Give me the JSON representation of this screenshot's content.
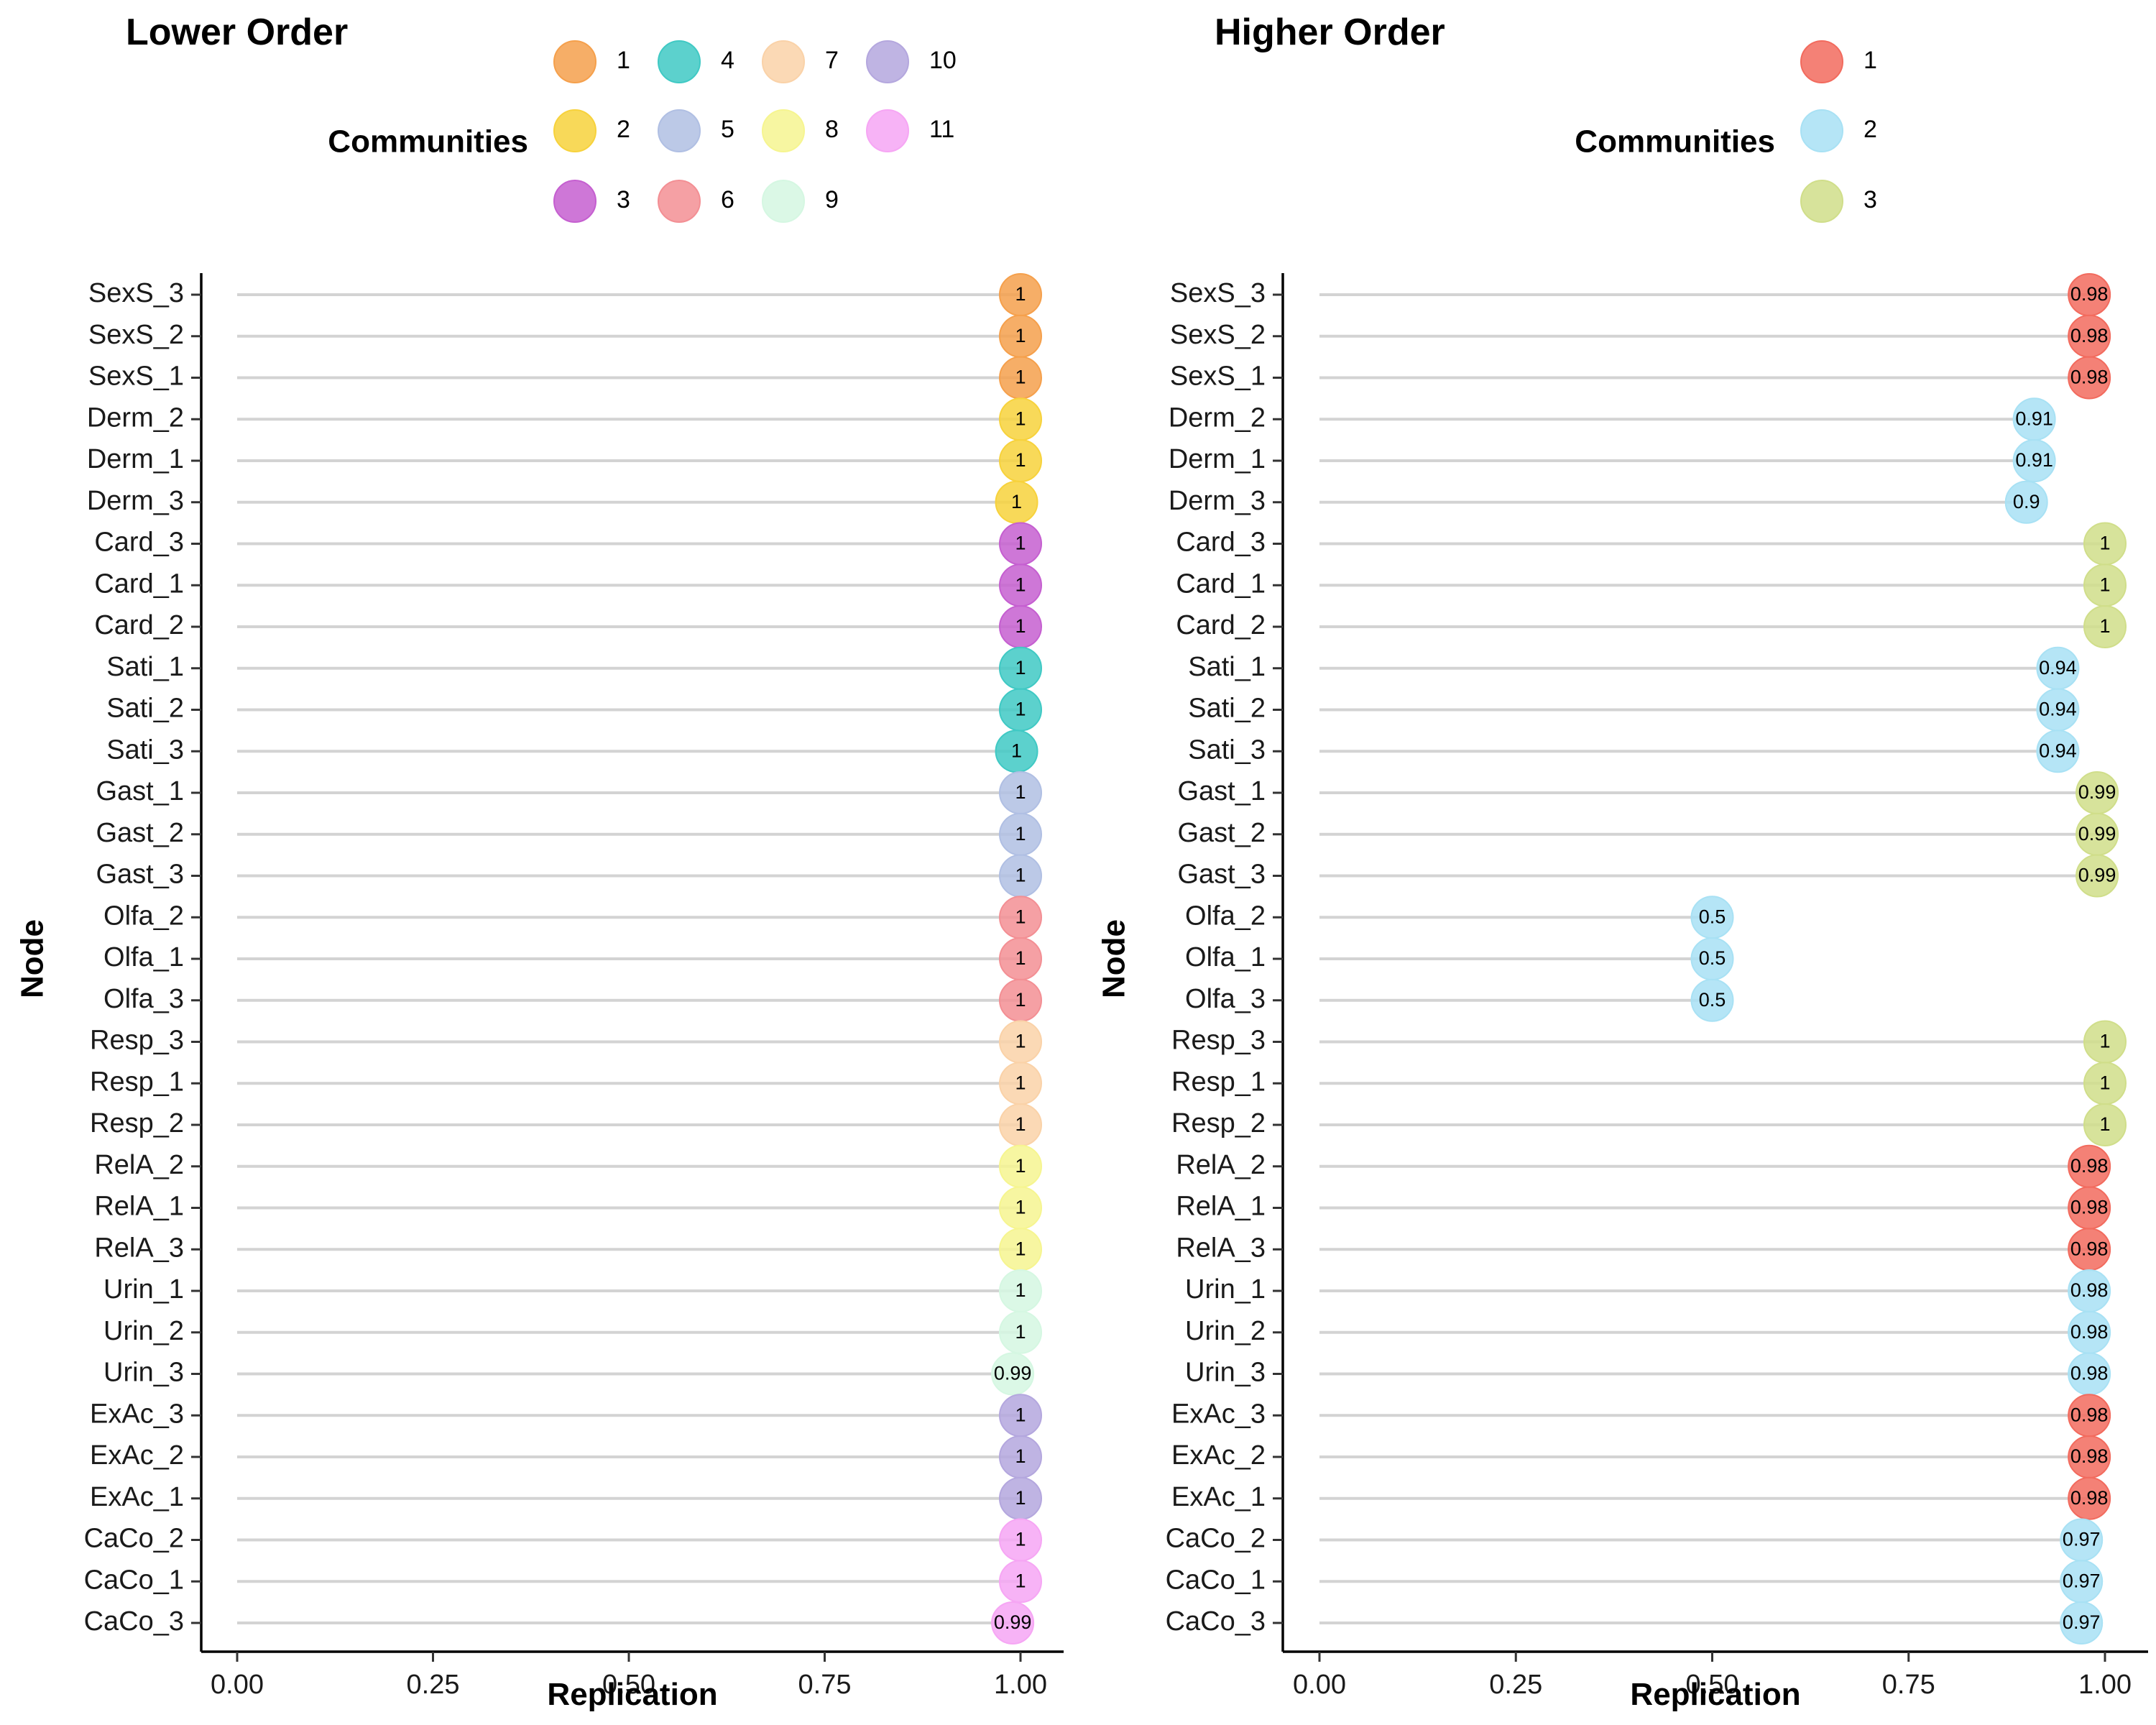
{
  "chart_data": [
    {
      "type": "lollipop",
      "title": "Lower Order",
      "xlabel": "Replication",
      "ylabel": "Node",
      "xlim": [
        0,
        1
      ],
      "xticks": [
        "0.00",
        "0.25",
        "0.50",
        "0.75",
        "1.00"
      ],
      "legend": {
        "title": "Communities",
        "placement": "top",
        "entries": [
          {
            "label": "1",
            "color": "#F5A04C"
          },
          {
            "label": "2",
            "color": "#F7D23C"
          },
          {
            "label": "3",
            "color": "#C55FD0"
          },
          {
            "label": "4",
            "color": "#40C9C4"
          },
          {
            "label": "5",
            "color": "#B0BFE3"
          },
          {
            "label": "6",
            "color": "#F38F94"
          },
          {
            "label": "7",
            "color": "#FAD2A8"
          },
          {
            "label": "8",
            "color": "#F6F590"
          },
          {
            "label": "9",
            "color": "#D5F7E2"
          },
          {
            "label": "10",
            "color": "#B4A7DE"
          },
          {
            "label": "11",
            "color": "#F6A6F4"
          }
        ]
      },
      "points": [
        {
          "node": "SexS_3",
          "value": 1,
          "label": "1",
          "community": "1"
        },
        {
          "node": "SexS_2",
          "value": 1,
          "label": "1",
          "community": "1"
        },
        {
          "node": "SexS_1",
          "value": 1,
          "label": "1",
          "community": "1"
        },
        {
          "node": "Derm_2",
          "value": 1,
          "label": "1",
          "community": "2"
        },
        {
          "node": "Derm_1",
          "value": 1,
          "label": "1",
          "community": "2"
        },
        {
          "node": "Derm_3",
          "value": 0.995,
          "label": "1",
          "community": "2"
        },
        {
          "node": "Card_3",
          "value": 1,
          "label": "1",
          "community": "3"
        },
        {
          "node": "Card_1",
          "value": 1,
          "label": "1",
          "community": "3"
        },
        {
          "node": "Card_2",
          "value": 1,
          "label": "1",
          "community": "3"
        },
        {
          "node": "Sati_1",
          "value": 1,
          "label": "1",
          "community": "4"
        },
        {
          "node": "Sati_2",
          "value": 1,
          "label": "1",
          "community": "4"
        },
        {
          "node": "Sati_3",
          "value": 0.995,
          "label": "1",
          "community": "4"
        },
        {
          "node": "Gast_1",
          "value": 1,
          "label": "1",
          "community": "5"
        },
        {
          "node": "Gast_2",
          "value": 1,
          "label": "1",
          "community": "5"
        },
        {
          "node": "Gast_3",
          "value": 1,
          "label": "1",
          "community": "5"
        },
        {
          "node": "Olfa_2",
          "value": 1,
          "label": "1",
          "community": "6"
        },
        {
          "node": "Olfa_1",
          "value": 1,
          "label": "1",
          "community": "6"
        },
        {
          "node": "Olfa_3",
          "value": 1,
          "label": "1",
          "community": "6"
        },
        {
          "node": "Resp_3",
          "value": 1,
          "label": "1",
          "community": "7"
        },
        {
          "node": "Resp_1",
          "value": 1,
          "label": "1",
          "community": "7"
        },
        {
          "node": "Resp_2",
          "value": 1,
          "label": "1",
          "community": "7"
        },
        {
          "node": "RelA_2",
          "value": 1,
          "label": "1",
          "community": "8"
        },
        {
          "node": "RelA_1",
          "value": 1,
          "label": "1",
          "community": "8"
        },
        {
          "node": "RelA_3",
          "value": 1,
          "label": "1",
          "community": "8"
        },
        {
          "node": "Urin_1",
          "value": 1,
          "label": "1",
          "community": "9"
        },
        {
          "node": "Urin_2",
          "value": 1,
          "label": "1",
          "community": "9"
        },
        {
          "node": "Urin_3",
          "value": 0.99,
          "label": "0.99",
          "community": "9"
        },
        {
          "node": "ExAc_3",
          "value": 1,
          "label": "1",
          "community": "10"
        },
        {
          "node": "ExAc_2",
          "value": 1,
          "label": "1",
          "community": "10"
        },
        {
          "node": "ExAc_1",
          "value": 1,
          "label": "1",
          "community": "10"
        },
        {
          "node": "CaCo_2",
          "value": 1,
          "label": "1",
          "community": "11"
        },
        {
          "node": "CaCo_1",
          "value": 1,
          "label": "1",
          "community": "11"
        },
        {
          "node": "CaCo_3",
          "value": 0.99,
          "label": "0.99",
          "community": "11"
        }
      ]
    },
    {
      "type": "lollipop",
      "title": "Higher Order",
      "xlabel": "Replication",
      "ylabel": "Node",
      "xlim": [
        0,
        1
      ],
      "xticks": [
        "0.00",
        "0.25",
        "0.50",
        "0.75",
        "1.00"
      ],
      "legend": {
        "title": "Communities",
        "placement": "top",
        "entries": [
          {
            "label": "1",
            "color": "#F26B5E"
          },
          {
            "label": "2",
            "color": "#A8E1F4"
          },
          {
            "label": "3",
            "color": "#D0DE8A"
          }
        ]
      },
      "points": [
        {
          "node": "SexS_3",
          "value": 0.98,
          "label": "0.98",
          "community": "1"
        },
        {
          "node": "SexS_2",
          "value": 0.98,
          "label": "0.98",
          "community": "1"
        },
        {
          "node": "SexS_1",
          "value": 0.98,
          "label": "0.98",
          "community": "1"
        },
        {
          "node": "Derm_2",
          "value": 0.91,
          "label": "0.91",
          "community": "2"
        },
        {
          "node": "Derm_1",
          "value": 0.91,
          "label": "0.91",
          "community": "2"
        },
        {
          "node": "Derm_3",
          "value": 0.9,
          "label": "0.9",
          "community": "2"
        },
        {
          "node": "Card_3",
          "value": 1,
          "label": "1",
          "community": "3"
        },
        {
          "node": "Card_1",
          "value": 1,
          "label": "1",
          "community": "3"
        },
        {
          "node": "Card_2",
          "value": 1,
          "label": "1",
          "community": "3"
        },
        {
          "node": "Sati_1",
          "value": 0.94,
          "label": "0.94",
          "community": "2"
        },
        {
          "node": "Sati_2",
          "value": 0.94,
          "label": "0.94",
          "community": "2"
        },
        {
          "node": "Sati_3",
          "value": 0.94,
          "label": "0.94",
          "community": "2"
        },
        {
          "node": "Gast_1",
          "value": 0.99,
          "label": "0.99",
          "community": "3"
        },
        {
          "node": "Gast_2",
          "value": 0.99,
          "label": "0.99",
          "community": "3"
        },
        {
          "node": "Gast_3",
          "value": 0.99,
          "label": "0.99",
          "community": "3"
        },
        {
          "node": "Olfa_2",
          "value": 0.5,
          "label": "0.5",
          "community": "2"
        },
        {
          "node": "Olfa_1",
          "value": 0.5,
          "label": "0.5",
          "community": "2"
        },
        {
          "node": "Olfa_3",
          "value": 0.5,
          "label": "0.5",
          "community": "2"
        },
        {
          "node": "Resp_3",
          "value": 1,
          "label": "1",
          "community": "3"
        },
        {
          "node": "Resp_1",
          "value": 1,
          "label": "1",
          "community": "3"
        },
        {
          "node": "Resp_2",
          "value": 1,
          "label": "1",
          "community": "3"
        },
        {
          "node": "RelA_2",
          "value": 0.98,
          "label": "0.98",
          "community": "1"
        },
        {
          "node": "RelA_1",
          "value": 0.98,
          "label": "0.98",
          "community": "1"
        },
        {
          "node": "RelA_3",
          "value": 0.98,
          "label": "0.98",
          "community": "1"
        },
        {
          "node": "Urin_1",
          "value": 0.98,
          "label": "0.98",
          "community": "2"
        },
        {
          "node": "Urin_2",
          "value": 0.98,
          "label": "0.98",
          "community": "2"
        },
        {
          "node": "Urin_3",
          "value": 0.98,
          "label": "0.98",
          "community": "2"
        },
        {
          "node": "ExAc_3",
          "value": 0.98,
          "label": "0.98",
          "community": "1"
        },
        {
          "node": "ExAc_2",
          "value": 0.98,
          "label": "0.98",
          "community": "1"
        },
        {
          "node": "ExAc_1",
          "value": 0.98,
          "label": "0.98",
          "community": "1"
        },
        {
          "node": "CaCo_2",
          "value": 0.97,
          "label": "0.97",
          "community": "2"
        },
        {
          "node": "CaCo_1",
          "value": 0.97,
          "label": "0.97",
          "community": "2"
        },
        {
          "node": "CaCo_3",
          "value": 0.97,
          "label": "0.97",
          "community": "2"
        }
      ]
    }
  ]
}
